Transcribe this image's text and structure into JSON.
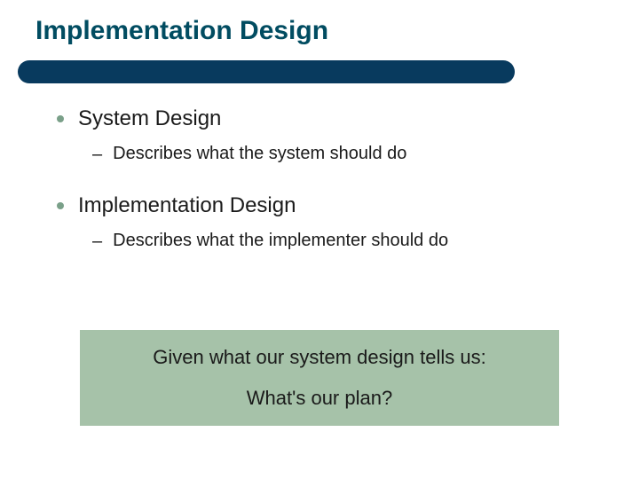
{
  "colors": {
    "title": "#014c61",
    "body": "#1a1a1a",
    "underline_bg": "#083a5e",
    "bullet_dot": "#7aa089",
    "callout_bg": "#a6c2a9",
    "callout_text": "#1a1a1a"
  },
  "typography": {
    "title_fontsize": 30,
    "body_fontsize": 24,
    "sub_fontsize": 20,
    "callout_fontsize": 22,
    "title_weight": "bold"
  },
  "layout": {
    "underline_width": 560,
    "underline_height": 26
  },
  "title": "Implementation Design",
  "bullets": [
    {
      "label": "System Design",
      "sub": [
        "Describes what the system should do"
      ]
    },
    {
      "label": "Implementation Design",
      "sub": [
        "Describes what the implementer should do"
      ]
    }
  ],
  "callout": {
    "line1": "Given what our system design tells us:",
    "line2": "What's our plan?"
  }
}
